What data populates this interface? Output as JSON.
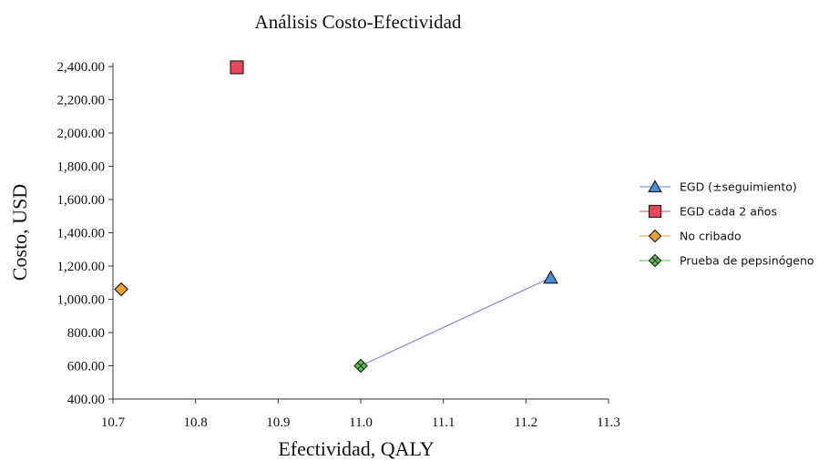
{
  "chart_data": {
    "type": "scatter",
    "title": "Análisis Costo-Efectividad",
    "xlabel": "Efectividad, QALY",
    "ylabel": "Costo, USD",
    "xlim": [
      10.7,
      11.3
    ],
    "ylim": [
      400,
      2400
    ],
    "x_ticks": [
      "10.7",
      "10.8",
      "10.9",
      "11.0",
      "11.1",
      "11.2",
      "11.3"
    ],
    "y_ticks": [
      "400.00",
      "600.00",
      "800.00",
      "1,000.00",
      "1,200.00",
      "1,400.00",
      "1,600.00",
      "1,800.00",
      "2,000.00",
      "2,200.00",
      "2,400.00"
    ],
    "grid": false,
    "legend_position": "right",
    "series": [
      {
        "name": "EGD (±seguimiento)",
        "x": 11.23,
        "y": 1130,
        "marker": "triangle",
        "color": "#4a90d9"
      },
      {
        "name": "EGD cada 2 años",
        "x": 10.85,
        "y": 2395,
        "marker": "square",
        "color": "#e8485a"
      },
      {
        "name": "No cribado",
        "x": 10.71,
        "y": 1060,
        "marker": "diamond",
        "color": "#f0a030"
      },
      {
        "name": "Prueba de pepsinógeno",
        "x": 11.0,
        "y": 600,
        "marker": "diamond-cross",
        "color": "#56c84a"
      }
    ],
    "frontier": {
      "from": 3,
      "to": 0,
      "color": "#8a8ad0"
    }
  }
}
